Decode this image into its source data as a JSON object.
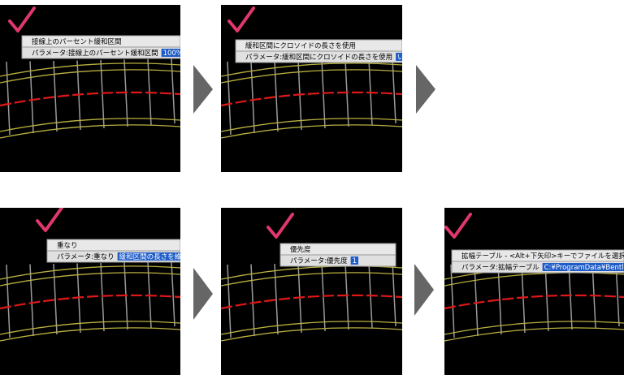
{
  "panels": [
    {
      "title": "接線上のパーセント緩和区間",
      "param_label": "パラメータ:接線上のパーセント緩和区間",
      "param_value": "100%"
    },
    {
      "title": "緩和区間にクロソイドの長さを使用",
      "param_label": "パラメータ:緩和区間にクロソイドの長さを使用",
      "param_value": "いいえ"
    },
    {
      "title": "重なり",
      "param_label": "パラメータ:重なり",
      "param_value": "緩和区間の長さを維持"
    },
    {
      "title": "優先度",
      "param_label": "パラメータ:優先度",
      "param_value": "1"
    },
    {
      "title": "拡幅テーブル - <Alt+下矢印>キーでファイルを選択",
      "param_label": "パラメータ:拡幅テーブル",
      "param_value": "C:¥ProgramData¥Bentley¥Tre"
    }
  ]
}
